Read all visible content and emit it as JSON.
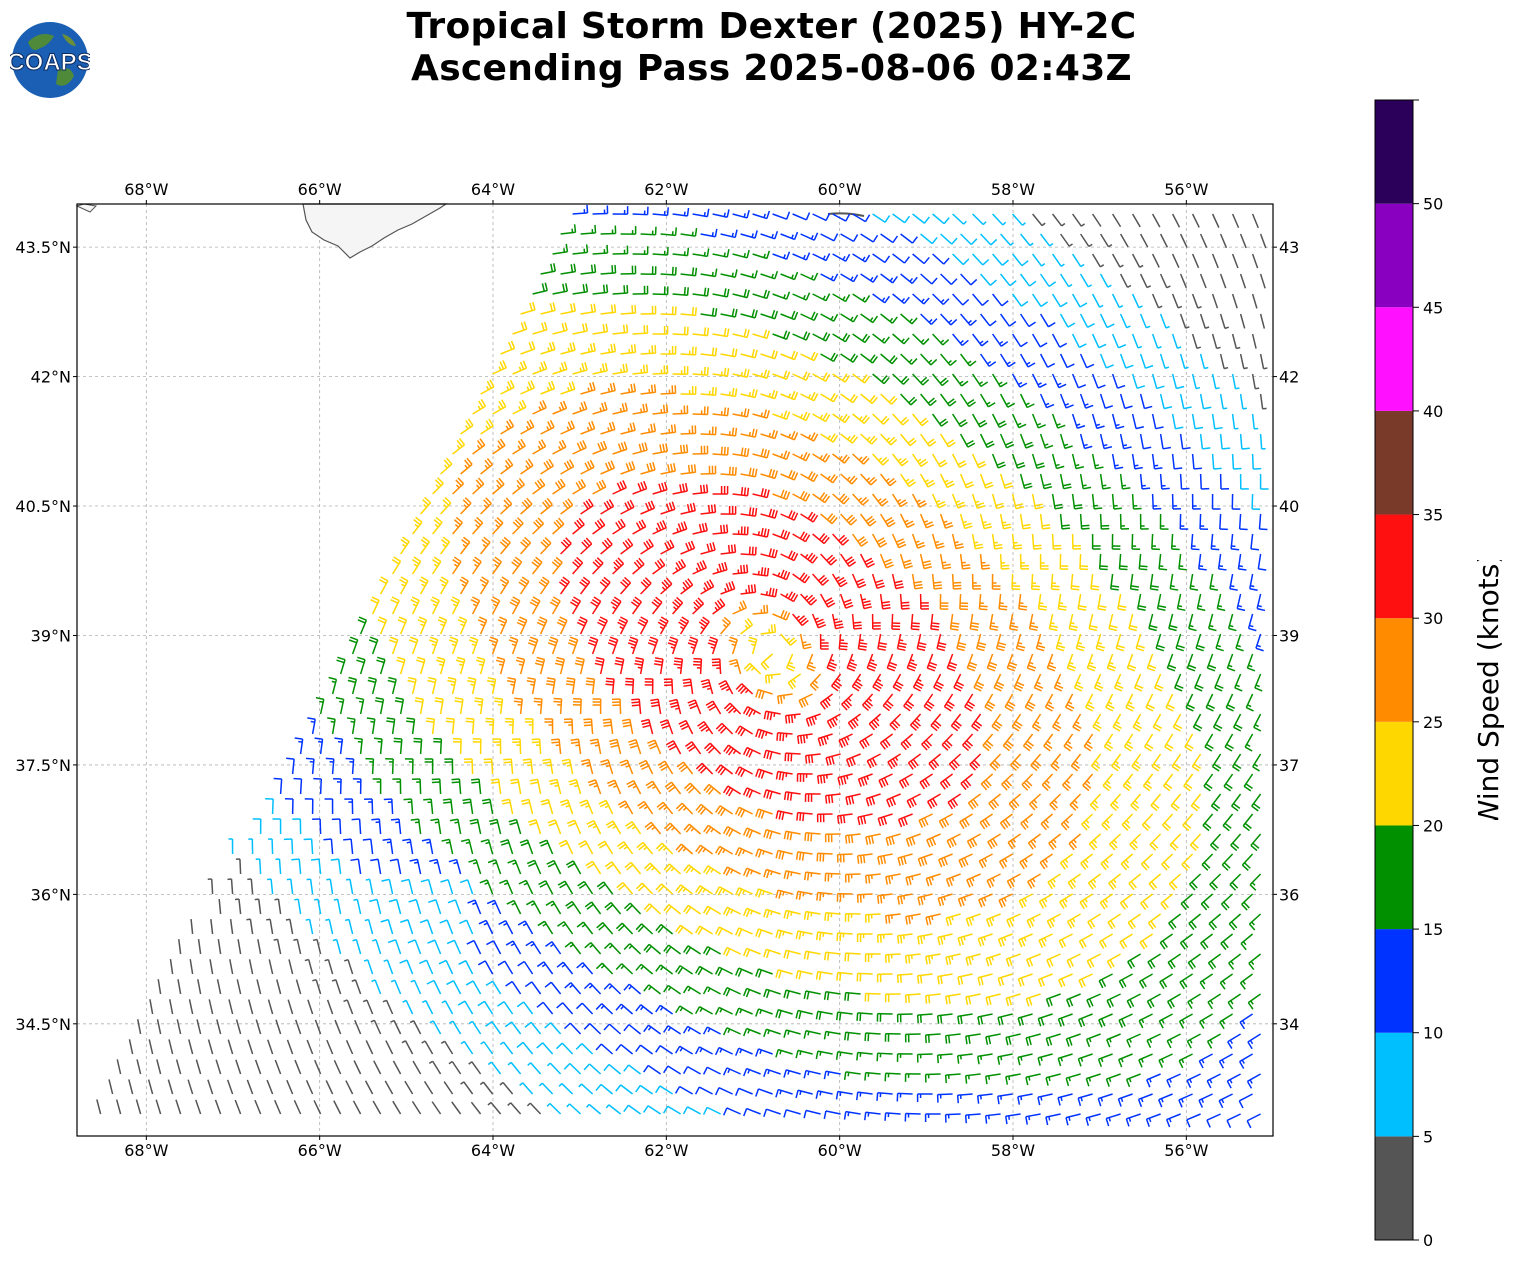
{
  "title": {
    "line1": "Tropical Storm Dexter (2025) HY-2C",
    "line2": "Ascending Pass 2025-08-06 02:43Z"
  },
  "logo": {
    "text": "COAPS",
    "icon": "globe-logo-icon"
  },
  "map": {
    "lon_ticks": [
      "68°W",
      "66°W",
      "64°W",
      "62°W",
      "60°W",
      "58°W",
      "56°W"
    ],
    "lon_values": [
      -68,
      -66,
      -64,
      -62,
      -60,
      -58,
      -56
    ],
    "lat_ticks": [
      "43.5°N",
      "42°N",
      "40.5°N",
      "39°N",
      "37.5°N",
      "36°N",
      "34.5°N"
    ],
    "lat_values": [
      43.5,
      42,
      40.5,
      39,
      37.5,
      36,
      34.5
    ],
    "extent": {
      "lon": [
        -68.8,
        -55.0
      ],
      "lat": [
        33.2,
        44.0
      ]
    },
    "storm_center": {
      "lon": -60.8,
      "lat": 38.8
    },
    "gridlines": true,
    "land_color": "#f5f5f5",
    "coast_color": "#555555"
  },
  "colorbar": {
    "label": "Wind Speed (knots)",
    "ticks": [
      "0",
      "5",
      "10",
      "15",
      "20",
      "25",
      "30",
      "35",
      "40",
      "45",
      "50"
    ],
    "tick_values": [
      0,
      5,
      10,
      15,
      20,
      25,
      30,
      35,
      40,
      45,
      50
    ],
    "max": 55,
    "colors": [
      "#555555",
      "#00bfff",
      "#0033ff",
      "#009000",
      "#ffd700",
      "#ff8c00",
      "#ff1010",
      "#7a3a2a",
      "#ff10ff",
      "#8a00c0",
      "#2a005a"
    ]
  },
  "chart_data": {
    "type": "wind-barbs",
    "title": "Tropical Storm Dexter (2025) HY-2C Ascending Pass 2025-08-06 02:43Z",
    "units": "knots",
    "center": {
      "lon": -60.8,
      "lat": 38.8
    },
    "peak_wind_kt": 33,
    "wind_speed_bins": [
      [
        0,
        5
      ],
      [
        5,
        10
      ],
      [
        10,
        15
      ],
      [
        15,
        20
      ],
      [
        20,
        25
      ],
      [
        25,
        30
      ],
      [
        30,
        35
      ],
      [
        35,
        40
      ],
      [
        40,
        45
      ],
      [
        45,
        50
      ],
      [
        50,
        55
      ]
    ]
  }
}
